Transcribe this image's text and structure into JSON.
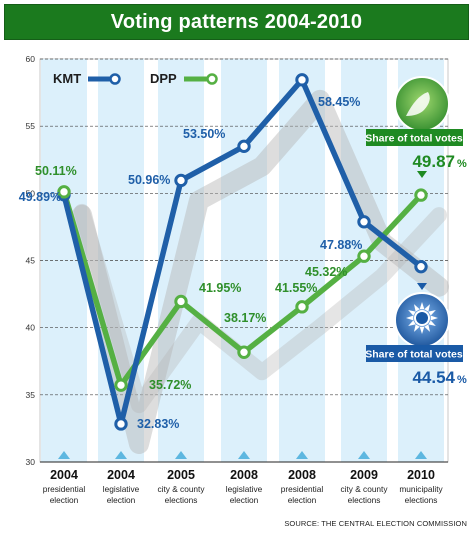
{
  "title": "Voting patterns 2004-2010",
  "source": "SOURCE: THE CENTRAL ELECTION COMMISSION",
  "colors": {
    "kmt": "#1f5fa8",
    "dpp": "#55b043",
    "title_bg": "#1b7a1e",
    "bg_band": "#dcf0fb"
  },
  "chart_data": {
    "type": "line",
    "categories": [
      {
        "year": "2004",
        "line1": "presidential",
        "line2": "election"
      },
      {
        "year": "2004",
        "line1": "legislative",
        "line2": "election"
      },
      {
        "year": "2005",
        "line1": "city & county",
        "line2": "elections"
      },
      {
        "year": "2008",
        "line1": "legislative",
        "line2": "election"
      },
      {
        "year": "2008",
        "line1": "presidential",
        "line2": "election"
      },
      {
        "year": "2009",
        "line1": "city & county",
        "line2": "elections"
      },
      {
        "year": "2010",
        "line1": "municipality",
        "line2": "elections"
      }
    ],
    "series": [
      {
        "name": "KMT",
        "color": "#1f5fa8",
        "values": [
          49.89,
          32.83,
          50.96,
          53.5,
          58.45,
          47.88,
          44.54
        ],
        "labels": [
          "49.89%",
          "32.83%",
          "50.96%",
          "53.50%",
          "58.45%",
          "47.88%",
          ""
        ]
      },
      {
        "name": "DPP",
        "color": "#55b043",
        "values": [
          50.11,
          35.72,
          41.95,
          38.17,
          41.55,
          45.32,
          49.87
        ],
        "labels": [
          "50.11%",
          "35.72%",
          "41.95%",
          "38.17%",
          "41.55%",
          "45.32%",
          ""
        ]
      }
    ],
    "ylim": [
      30,
      60
    ],
    "yticks": [
      30,
      35,
      40,
      45,
      50,
      55,
      60
    ],
    "grid": true,
    "legend": "top-left"
  },
  "callouts": {
    "dpp": {
      "label": "Share of total votes",
      "value": "49.87",
      "suffix": "%"
    },
    "kmt": {
      "label": "Share of total votes",
      "value": "44.54",
      "suffix": "%"
    }
  }
}
